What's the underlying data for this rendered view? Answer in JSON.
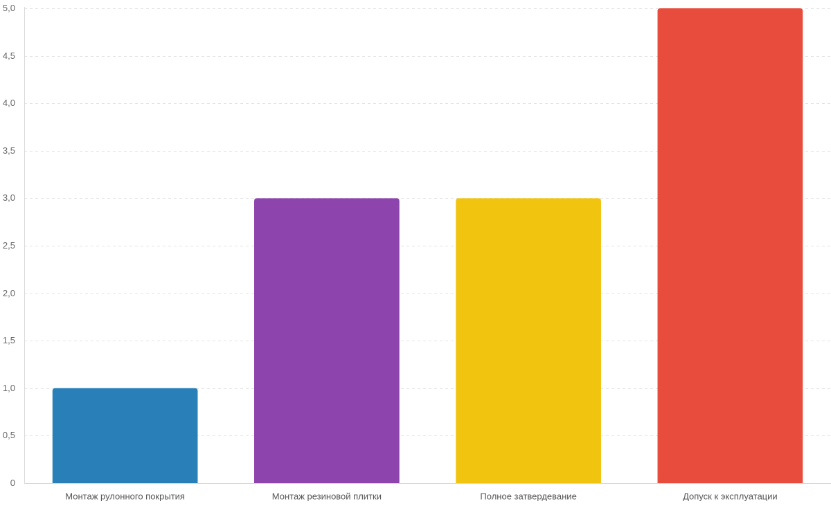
{
  "chart_data": {
    "type": "bar",
    "categories": [
      "Монтаж рулонного покрытия",
      "Монтаж резиновой плитки",
      "Полное затвердевание",
      "Допуск к эксплуатации"
    ],
    "values": [
      1,
      3,
      3,
      5
    ],
    "colors": [
      "#2980b9",
      "#8e44ad",
      "#f1c40f",
      "#e74c3c"
    ],
    "ylim": [
      0,
      5
    ],
    "yticks": [
      0,
      0.5,
      1,
      1.5,
      2,
      2.5,
      3,
      3.5,
      4,
      4.5,
      5
    ],
    "ytick_labels": [
      "0",
      "0,5",
      "1,0",
      "1,5",
      "2,0",
      "2,5",
      "3,0",
      "3,5",
      "4,0",
      "4,5",
      "5,0"
    ],
    "grid": true,
    "title": "",
    "xlabel": "",
    "ylabel": ""
  }
}
